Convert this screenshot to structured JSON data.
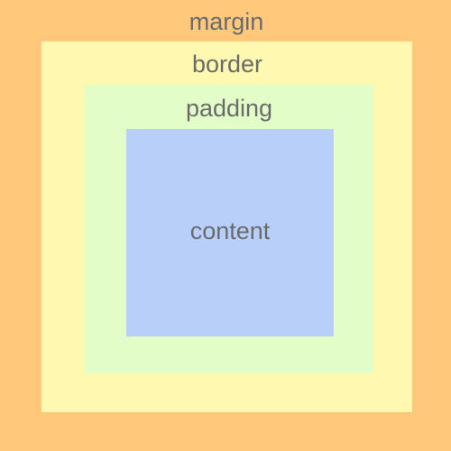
{
  "layers": {
    "margin": {
      "label": "margin",
      "color": "#ffc87a"
    },
    "border": {
      "label": "border",
      "color": "#fff8b0"
    },
    "padding": {
      "label": "padding",
      "color": "#e3fdc8"
    },
    "content": {
      "label": "content",
      "color": "#b8d0f9"
    }
  },
  "text_color": "#6b6b6b"
}
